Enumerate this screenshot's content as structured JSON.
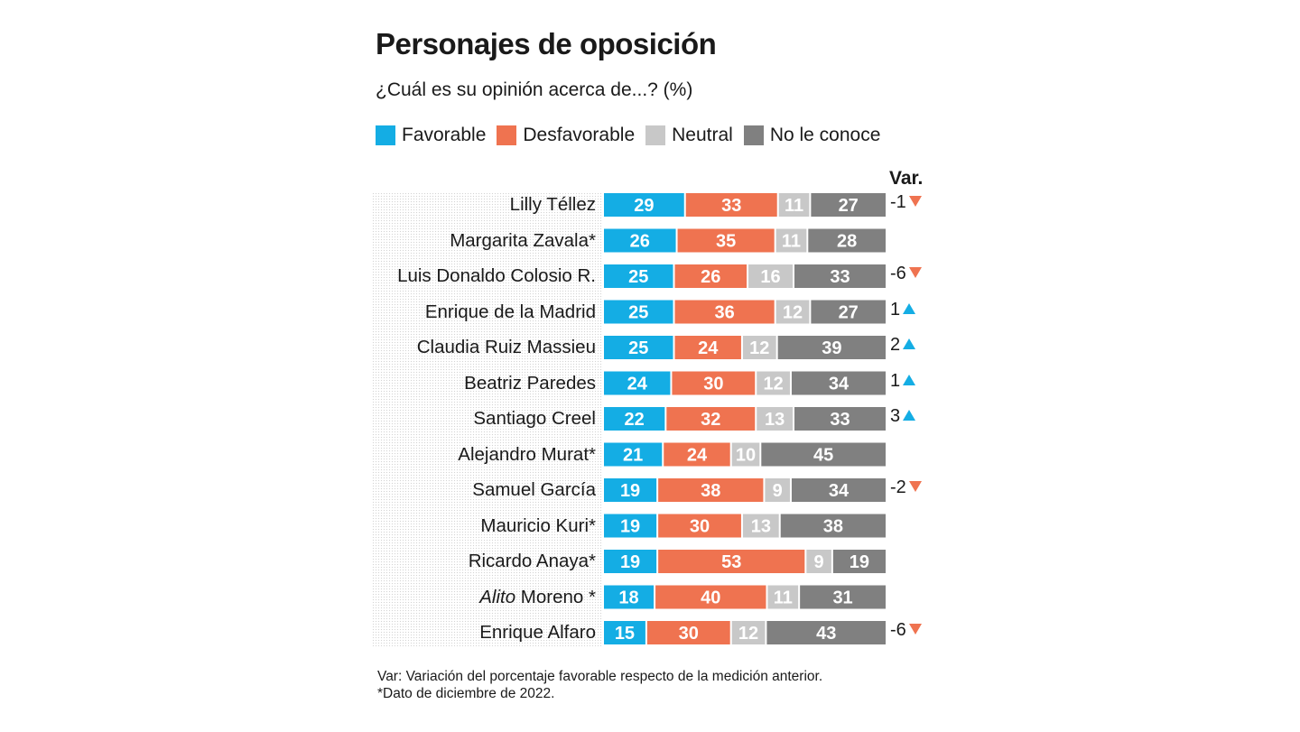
{
  "chart_data": {
    "type": "bar",
    "orientation": "horizontal",
    "stacked": true,
    "title": "Personajes de oposición",
    "subtitle": "¿Cuál es su opinión acerca de...? (%)",
    "var_label": "Var.",
    "categories": [
      "Lilly Téllez",
      "Margarita Zavala*",
      "Luis Donaldo Colosio R.",
      "Enrique de la Madrid",
      "Claudia Ruiz Massieu",
      "Beatriz Paredes",
      "Santiago Creel",
      "Alejandro Murat*",
      "Samuel García",
      "Mauricio Kuri*",
      "Ricardo Anaya*",
      "Alito Moreno *",
      "Enrique Alfaro"
    ],
    "series": [
      {
        "name": "Favorable",
        "color": "#14ade4",
        "values": [
          29,
          26,
          25,
          25,
          25,
          24,
          22,
          21,
          19,
          19,
          19,
          18,
          15
        ]
      },
      {
        "name": "Desfavorable",
        "color": "#ef7350",
        "values": [
          33,
          35,
          26,
          36,
          24,
          30,
          32,
          24,
          38,
          30,
          53,
          40,
          30
        ]
      },
      {
        "name": "Neutral",
        "color": "#c8c8c8",
        "values": [
          11,
          11,
          16,
          12,
          12,
          12,
          13,
          10,
          9,
          13,
          9,
          11,
          12
        ]
      },
      {
        "name": "No le conoce",
        "color": "#808080",
        "values": [
          27,
          28,
          33,
          27,
          39,
          34,
          33,
          45,
          34,
          38,
          19,
          31,
          43
        ]
      }
    ],
    "var": [
      {
        "value": "-1",
        "direction": "down"
      },
      null,
      {
        "value": "-6",
        "direction": "down"
      },
      {
        "value": "1",
        "direction": "up"
      },
      {
        "value": "2",
        "direction": "up"
      },
      {
        "value": "1",
        "direction": "up"
      },
      {
        "value": "3",
        "direction": "up"
      },
      null,
      {
        "value": "-2",
        "direction": "down"
      },
      null,
      null,
      null,
      {
        "value": "-6",
        "direction": "down"
      }
    ],
    "up_color": "#14ade4",
    "down_color": "#ef7350",
    "legend_position": "top"
  },
  "footnotes": {
    "line1": "Var: Variación del porcentaje favorable respecto de la medición anterior.",
    "line2": "*Dato de diciembre de 2022."
  }
}
